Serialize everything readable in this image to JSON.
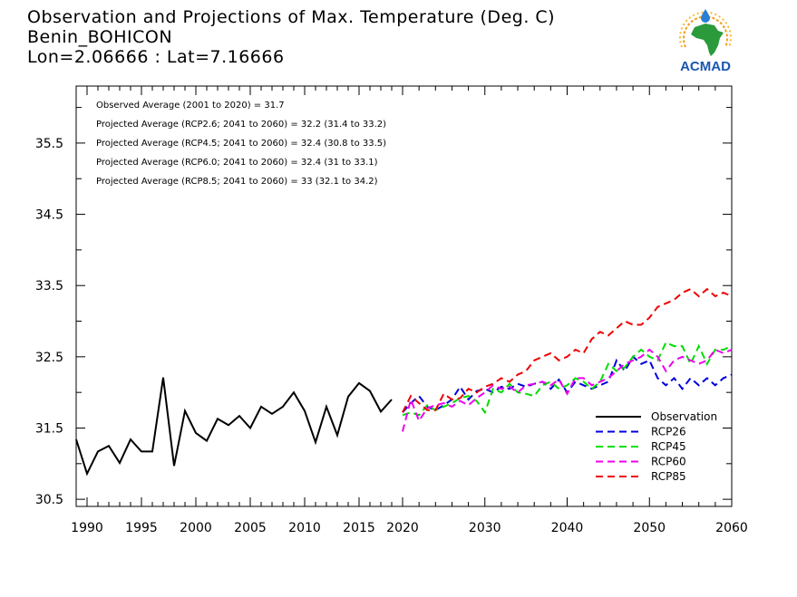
{
  "title": {
    "line1": "Observation and Projections of Max. Temperature (Deg. C)",
    "line2": "Benin_BOHICON",
    "line3": "Lon=2.06666 : Lat=7.16666"
  },
  "logo_text": "ACMAD",
  "annotations": [
    "Observed Average (2001 to 2020) = 31.7",
    "Projected Average (RCP2.6; 2041 to 2060) = 32.2 (31.4 to 33.2)",
    "Projected Average (RCP4.5; 2041 to 2060) = 32.4 (30.8 to 33.5)",
    "Projected Average (RCP6.0; 2041 to 2060) = 32.4 (31 to 33.1)",
    "Projected Average (RCP8.5; 2041 to 2060) = 33 (32.1 to 34.2)"
  ],
  "chart_data": {
    "type": "line",
    "grid": false,
    "legend_position": "bottom-right",
    "ylim": [
      30.4,
      36.3
    ],
    "y_ticks": [
      "30.5",
      "31.5",
      "32.5",
      "33.5",
      "34.5",
      "35.5"
    ],
    "x_ticks_left": [
      "1990",
      "1995",
      "2000",
      "2005",
      "2010",
      "2015",
      "2020"
    ],
    "x_ticks_right": [
      "2020",
      "2030",
      "2040",
      "2050",
      "2060"
    ],
    "legend": [
      "Observation",
      "RCP26",
      "RCP45",
      "RCP60",
      "RCP85"
    ],
    "series": [
      {
        "name": "Observation",
        "color": "#000000",
        "dash": "solid",
        "x": [
          1989,
          1990,
          1991,
          1992,
          1993,
          1994,
          1995,
          1996,
          1997,
          1998,
          1999,
          2000,
          2001,
          2002,
          2003,
          2004,
          2005,
          2006,
          2007,
          2008,
          2009,
          2010,
          2011,
          2012,
          2013,
          2014,
          2015,
          2016,
          2017,
          2018,
          2019
        ],
        "values": [
          31.34,
          30.86,
          31.17,
          31.25,
          31.01,
          31.34,
          31.17,
          31.17,
          32.21,
          30.97,
          31.74,
          31.43,
          31.32,
          31.63,
          31.54,
          31.67,
          31.5,
          31.8,
          31.7,
          31.8,
          32.0,
          31.74,
          31.3,
          31.8,
          31.4,
          31.94,
          32.13,
          32.02,
          31.73,
          31.9,
          null
        ]
      },
      {
        "name": "RCP26",
        "color": "#0000dd",
        "dash": "dashed",
        "x": [
          2020,
          2021,
          2022,
          2023,
          2024,
          2025,
          2026,
          2027,
          2028,
          2029,
          2030,
          2031,
          2032,
          2033,
          2034,
          2035,
          2036,
          2037,
          2038,
          2039,
          2040,
          2041,
          2042,
          2043,
          2044,
          2045,
          2046,
          2047,
          2048,
          2049,
          2050,
          2051,
          2052,
          2053,
          2054,
          2055,
          2056,
          2057,
          2058,
          2059,
          2060
        ],
        "values": [
          31.72,
          31.85,
          31.95,
          31.8,
          31.75,
          31.82,
          31.9,
          32.08,
          31.9,
          32.02,
          32.05,
          32.0,
          32.08,
          32.05,
          32.12,
          32.08,
          32.12,
          32.15,
          32.05,
          32.18,
          32.0,
          32.15,
          32.1,
          32.05,
          32.1,
          32.15,
          32.45,
          32.3,
          32.5,
          32.4,
          32.45,
          32.2,
          32.1,
          32.2,
          32.05,
          32.2,
          32.1,
          32.2,
          32.1,
          32.2,
          32.25
        ]
      },
      {
        "name": "RCP45",
        "color": "#00dd00",
        "dash": "dashed",
        "x": [
          2020,
          2021,
          2022,
          2023,
          2024,
          2025,
          2026,
          2027,
          2028,
          2029,
          2030,
          2031,
          2032,
          2033,
          2034,
          2035,
          2036,
          2037,
          2038,
          2039,
          2040,
          2041,
          2042,
          2043,
          2044,
          2045,
          2046,
          2047,
          2048,
          2049,
          2050,
          2051,
          2052,
          2053,
          2054,
          2055,
          2056,
          2057,
          2058,
          2059,
          2060
        ],
        "values": [
          31.68,
          31.72,
          31.68,
          31.82,
          31.75,
          31.8,
          31.85,
          31.92,
          31.95,
          31.88,
          31.72,
          32.05,
          32.0,
          32.12,
          32.0,
          31.98,
          31.95,
          32.1,
          32.15,
          32.05,
          32.1,
          32.2,
          32.15,
          32.05,
          32.15,
          32.4,
          32.3,
          32.35,
          32.5,
          32.6,
          32.5,
          32.45,
          32.7,
          32.65,
          32.65,
          32.4,
          32.65,
          32.4,
          32.6,
          32.6,
          32.65
        ]
      },
      {
        "name": "RCP60",
        "color": "#ee00ee",
        "dash": "dashed",
        "x": [
          2020,
          2021,
          2022,
          2023,
          2024,
          2025,
          2026,
          2027,
          2028,
          2029,
          2030,
          2031,
          2032,
          2033,
          2034,
          2035,
          2036,
          2037,
          2038,
          2039,
          2040,
          2041,
          2042,
          2043,
          2044,
          2045,
          2046,
          2047,
          2048,
          2049,
          2050,
          2051,
          2052,
          2053,
          2054,
          2055,
          2056,
          2057,
          2058,
          2059,
          2060
        ],
        "values": [
          31.45,
          31.9,
          31.6,
          31.78,
          31.82,
          31.85,
          31.8,
          31.88,
          31.82,
          31.92,
          32.0,
          32.1,
          32.05,
          32.08,
          32.0,
          32.1,
          32.12,
          32.15,
          32.1,
          32.18,
          31.98,
          32.2,
          32.2,
          32.1,
          32.15,
          32.2,
          32.3,
          32.4,
          32.45,
          32.5,
          32.6,
          32.5,
          32.3,
          32.45,
          32.5,
          32.45,
          32.4,
          32.45,
          32.6,
          32.55,
          32.6
        ]
      },
      {
        "name": "RCP85",
        "color": "#ee0000",
        "dash": "dashed",
        "x": [
          2020,
          2021,
          2022,
          2023,
          2024,
          2025,
          2026,
          2027,
          2028,
          2029,
          2030,
          2031,
          2032,
          2033,
          2034,
          2035,
          2036,
          2037,
          2038,
          2039,
          2040,
          2041,
          2042,
          2043,
          2044,
          2045,
          2046,
          2047,
          2048,
          2049,
          2050,
          2051,
          2052,
          2053,
          2054,
          2055,
          2056,
          2057,
          2058,
          2059,
          2060
        ],
        "values": [
          31.72,
          31.95,
          31.85,
          31.75,
          31.75,
          31.98,
          31.9,
          31.92,
          32.05,
          32.0,
          32.08,
          32.12,
          32.2,
          32.15,
          32.25,
          32.3,
          32.45,
          32.5,
          32.55,
          32.45,
          32.5,
          32.6,
          32.55,
          32.75,
          32.85,
          32.8,
          32.9,
          33.0,
          32.95,
          32.95,
          33.05,
          33.2,
          33.25,
          33.3,
          33.4,
          33.45,
          33.35,
          33.45,
          33.35,
          33.4,
          33.35
        ]
      }
    ]
  }
}
